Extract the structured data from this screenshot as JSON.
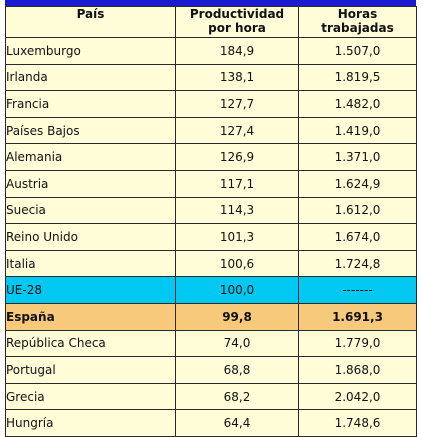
{
  "colors": {
    "header_bar": "#1a1ad0",
    "row_bg": "#fffcd8",
    "eu_bg": "#00c8f0",
    "spain_bg": "#f7c97b"
  },
  "headers": {
    "country": "País",
    "productivity_line1": "Productividad",
    "productivity_line2": "por hora",
    "hours_line1": "Horas",
    "hours_line2": "trabajadas"
  },
  "rows": [
    {
      "country": "Luxemburgo",
      "productivity": "184,9",
      "hours": "1.507,0"
    },
    {
      "country": "Irlanda",
      "productivity": "138,1",
      "hours": "1.819,5"
    },
    {
      "country": "Francia",
      "productivity": "127,7",
      "hours": "1.482,0"
    },
    {
      "country": "Países Bajos",
      "productivity": "127,4",
      "hours": "1.419,0"
    },
    {
      "country": "Alemania",
      "productivity": "126,9",
      "hours": "1.371,0"
    },
    {
      "country": "Austria",
      "productivity": "117,1",
      "hours": "1.624,9"
    },
    {
      "country": "Suecia",
      "productivity": "114,3",
      "hours": "1.612,0"
    },
    {
      "country": "Reino Unido",
      "productivity": "101,3",
      "hours": "1.674,0"
    },
    {
      "country": "Italia",
      "productivity": "100,6",
      "hours": "1.724,8"
    },
    {
      "country": "UE-28",
      "productivity": "100,0",
      "hours": "-------"
    },
    {
      "country": "España",
      "productivity": "99,8",
      "hours": "1.691,3"
    },
    {
      "country": "República Checa",
      "productivity": "74,0",
      "hours": "1.779,0"
    },
    {
      "country": "Portugal",
      "productivity": "68,8",
      "hours": "1.868,0"
    },
    {
      "country": "Grecia",
      "productivity": "68,2",
      "hours": "2.042,0"
    },
    {
      "country": "Hungría",
      "productivity": "64,4",
      "hours": "1.748,6"
    }
  ]
}
